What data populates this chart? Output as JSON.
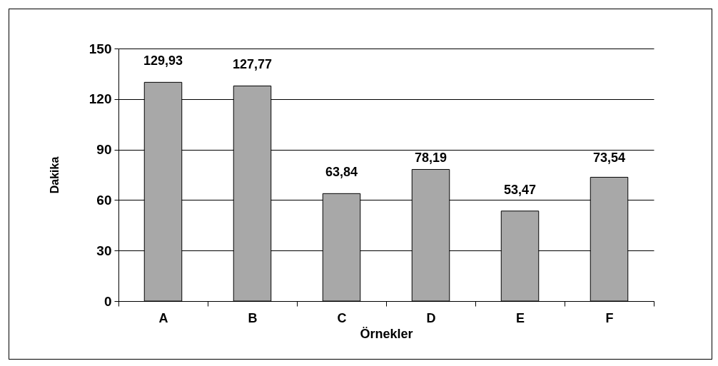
{
  "chart_data": {
    "type": "bar",
    "categories": [
      "A",
      "B",
      "C",
      "D",
      "E",
      "F"
    ],
    "values": [
      129.93,
      127.77,
      63.84,
      78.19,
      53.47,
      73.54
    ],
    "value_labels": [
      "129,93",
      "127,77",
      "63,84",
      "78,19",
      "53,47",
      "73,54"
    ],
    "color": "#a8a8a8",
    "xlabel": "Örnekler",
    "ylabel": "Dakika",
    "ylim": [
      0,
      150
    ],
    "yticks": [
      0,
      30,
      60,
      90,
      120,
      150
    ],
    "grid": "y"
  }
}
